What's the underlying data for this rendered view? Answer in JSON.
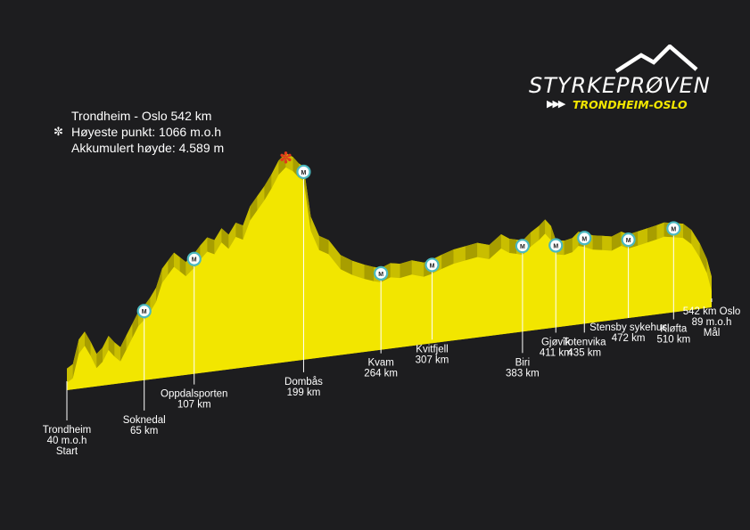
{
  "info": {
    "distance": "Trondheim - Oslo 542 km",
    "highest_point": "Høyeste punkt: 1066 m.o.h",
    "accumulated_climb": "Akkumulert høyde: 4.589 m",
    "highest_point_icon": "star-marker-icon"
  },
  "logo": {
    "brand": "STYRKEPRØVEN",
    "route": "TRONDHEIM-OSLO",
    "mountain_icon": "mountain-outline-icon",
    "arrows_icon": "triple-chevron-icon"
  },
  "colors": {
    "background": "#1d1d1f",
    "profile_top": "#f2e600",
    "profile_side": "#c9be00",
    "profile_dark": "#a89e00",
    "station_ring": "#4ab8c0",
    "highest_marker": "#e03a1c"
  },
  "chart_data": {
    "type": "area",
    "title": "",
    "xlabel": "",
    "ylabel": "",
    "xlim": [
      0,
      542
    ],
    "ylim": [
      0,
      1100
    ],
    "grid": false,
    "profile": {
      "x": [
        0,
        5,
        10,
        15,
        20,
        25,
        30,
        35,
        40,
        45,
        50,
        55,
        60,
        65,
        70,
        75,
        80,
        85,
        90,
        95,
        100,
        107,
        112,
        118,
        124,
        130,
        136,
        142,
        148,
        154,
        160,
        166,
        172,
        178,
        184,
        190,
        195,
        199,
        205,
        212,
        220,
        230,
        240,
        250,
        258,
        264,
        272,
        280,
        290,
        300,
        307,
        315,
        325,
        335,
        345,
        355,
        365,
        372,
        378,
        383,
        390,
        397,
        402,
        407,
        411,
        418,
        425,
        430,
        435,
        442,
        450,
        458,
        466,
        472,
        480,
        488,
        496,
        502,
        510,
        518,
        525,
        532,
        538,
        542
      ],
      "y": [
        40,
        60,
        190,
        230,
        170,
        100,
        130,
        190,
        150,
        120,
        180,
        240,
        300,
        330,
        370,
        420,
        520,
        560,
        600,
        570,
        540,
        580,
        620,
        660,
        640,
        700,
        660,
        720,
        700,
        800,
        850,
        900,
        960,
        1030,
        1066,
        1040,
        1000,
        980,
        700,
        590,
        560,
        470,
        430,
        400,
        380,
        370,
        390,
        380,
        390,
        370,
        380,
        400,
        420,
        430,
        440,
        420,
        470,
        440,
        430,
        420,
        460,
        490,
        520,
        480,
        400,
        390,
        400,
        430,
        420,
        400,
        390,
        380,
        400,
        380,
        390,
        400,
        410,
        420,
        410,
        400,
        360,
        280,
        190,
        89
      ]
    },
    "locations": [
      {
        "name": "Trondheim",
        "km_label": "40 m.o.h",
        "extra": "Start",
        "km": 0,
        "station": false
      },
      {
        "name": "Soknedal",
        "km_label": "65 km",
        "extra": "",
        "km": 65,
        "station": true
      },
      {
        "name": "Oppdalsporten",
        "km_label": "107 km",
        "extra": "",
        "km": 107,
        "station": true
      },
      {
        "name": "Dombås",
        "km_label": "199 km",
        "extra": "",
        "km": 199,
        "station": true
      },
      {
        "name": "Kvam",
        "km_label": "264 km",
        "extra": "",
        "km": 264,
        "station": true
      },
      {
        "name": "Kvitfjell",
        "km_label": "307 km",
        "extra": "",
        "km": 307,
        "station": true
      },
      {
        "name": "Biri",
        "km_label": "383 km",
        "extra": "",
        "km": 383,
        "station": true
      },
      {
        "name": "Gjøvik",
        "km_label": "411 km",
        "extra": "",
        "km": 411,
        "station": true
      },
      {
        "name": "Totenvika",
        "km_label": "435 km",
        "extra": "",
        "km": 435,
        "station": true
      },
      {
        "name": "Stensby sykehus",
        "km_label": "472 km",
        "extra": "",
        "km": 472,
        "station": true
      },
      {
        "name": "Kløfta",
        "km_label": "510 km",
        "extra": "",
        "km": 510,
        "station": true
      },
      {
        "name": "542 km Oslo",
        "km_label": "89 m.o.h",
        "extra": "Mål",
        "km": 542,
        "station": false
      }
    ],
    "station_symbol": "M",
    "highest_point_km": 184
  }
}
